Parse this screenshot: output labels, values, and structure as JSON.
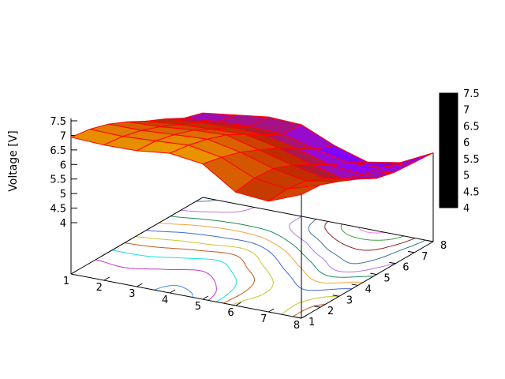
{
  "figure": {
    "zlabel": "Voltage [V]",
    "background": "#ffffff",
    "z_axis": {
      "ticks": [
        "4",
        "4.5",
        "5",
        "5.5",
        "6",
        "6.5",
        "7",
        "7.5"
      ],
      "min": 4,
      "max": 7.5
    },
    "x_axis": {
      "ticks": [
        "1",
        "2",
        "3",
        "4",
        "5",
        "6",
        "7",
        "8"
      ]
    },
    "y_axis": {
      "ticks": [
        "1",
        "2",
        "3",
        "4",
        "5",
        "6",
        "7",
        "8"
      ]
    },
    "colorbar": {
      "ticks": [
        "4",
        "4.5",
        "5",
        "5.5",
        "6",
        "6.5",
        "7",
        "7.5"
      ],
      "min": 4,
      "max": 7.5
    }
  },
  "chart_data": {
    "type": "surface3d_contour",
    "title": "",
    "zlabel": "Voltage [V]",
    "x": [
      1,
      2,
      3,
      4,
      5,
      6,
      7,
      8
    ],
    "y": [
      1,
      2,
      3,
      4,
      5,
      6,
      7,
      8
    ],
    "z_grid": [
      [
        6.95,
        6.9,
        6.92,
        7.05,
        6.9,
        6.15,
        6.05,
        6.5
      ],
      [
        6.85,
        6.82,
        6.88,
        6.95,
        6.75,
        6.25,
        6.1,
        6.45
      ],
      [
        6.65,
        6.65,
        6.72,
        6.78,
        6.55,
        6.2,
        6.0,
        6.2
      ],
      [
        6.35,
        6.4,
        6.5,
        6.55,
        6.25,
        5.95,
        5.7,
        5.9
      ],
      [
        6.0,
        6.1,
        6.15,
        6.2,
        5.95,
        5.6,
        5.3,
        5.55
      ],
      [
        5.7,
        5.8,
        5.85,
        5.8,
        5.55,
        5.2,
        5.1,
        5.4
      ],
      [
        5.35,
        5.45,
        5.5,
        5.45,
        5.15,
        4.9,
        4.95,
        5.35
      ],
      [
        5.15,
        5.3,
        5.45,
        5.4,
        4.9,
        4.55,
        4.75,
        5.3
      ]
    ],
    "x_range": [
      1,
      8
    ],
    "y_range": [
      1,
      8
    ],
    "z_range": [
      4,
      7.5
    ],
    "surface_mesh_color": "#ff0000",
    "palette": "pm3d black-violet-red-orange-yellow",
    "contour_levels": [
      4.6,
      4.8,
      5.0,
      5.2,
      5.4,
      5.6,
      5.8,
      6.0,
      6.2,
      6.4,
      6.6,
      6.8,
      7.0
    ],
    "contour_colors": [
      "#f080f0",
      "#44a03c",
      "#8b2424",
      "#447398",
      "#b478e0",
      "#21885a",
      "#f2a43e",
      "#4368cf",
      "#c6c632",
      "#bf5b22",
      "#16e0e0",
      "#c530cf",
      "#3a8cf0"
    ]
  }
}
